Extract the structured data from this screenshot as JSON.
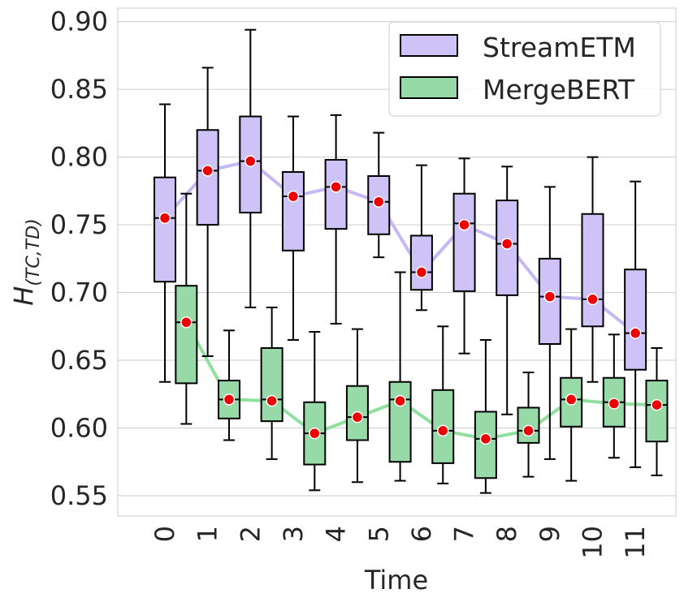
{
  "chart_data": {
    "type": "box",
    "title": "",
    "xlabel": "Time",
    "ylabel": "H",
    "ylabel_subscript": "(TC,TD)",
    "ylim": [
      0.535,
      0.91
    ],
    "yticks": [
      0.55,
      0.6,
      0.65,
      0.7,
      0.75,
      0.8,
      0.85,
      0.9
    ],
    "ytick_labels": [
      "0.55",
      "0.60",
      "0.65",
      "0.70",
      "0.75",
      "0.80",
      "0.85",
      "0.90"
    ],
    "categories": [
      "0",
      "1",
      "2",
      "3",
      "4",
      "5",
      "6",
      "7",
      "8",
      "9",
      "10",
      "11"
    ],
    "grid": true,
    "legend_position": "top-right",
    "series": [
      {
        "name": "StreamETM",
        "color": "#cfc2f7",
        "line_color": "#c6b8f5",
        "whisker_low": [
          0.634,
          0.653,
          0.689,
          0.665,
          0.677,
          0.726,
          0.687,
          0.655,
          0.61,
          0.577,
          0.634,
          0.571
        ],
        "q1": [
          0.708,
          0.75,
          0.759,
          0.731,
          0.747,
          0.743,
          0.702,
          0.701,
          0.698,
          0.662,
          0.675,
          0.643
        ],
        "median": [
          0.755,
          0.79,
          0.797,
          0.771,
          0.778,
          0.767,
          0.715,
          0.751,
          0.736,
          0.697,
          0.695,
          0.67
        ],
        "q3": [
          0.785,
          0.82,
          0.83,
          0.789,
          0.798,
          0.786,
          0.742,
          0.773,
          0.768,
          0.725,
          0.758,
          0.717
        ],
        "whisker_high": [
          0.839,
          0.866,
          0.894,
          0.83,
          0.831,
          0.818,
          0.794,
          0.799,
          0.793,
          0.778,
          0.8,
          0.782
        ],
        "mean": [
          0.755,
          0.79,
          0.797,
          0.771,
          0.778,
          0.767,
          0.715,
          0.75,
          0.736,
          0.697,
          0.695,
          0.67
        ]
      },
      {
        "name": "MergeBERT",
        "color": "#97d9a7",
        "line_color": "#8fe09c",
        "whisker_low": [
          0.603,
          0.591,
          0.577,
          0.554,
          0.56,
          0.561,
          0.559,
          0.552,
          0.564,
          0.561,
          0.578,
          0.565
        ],
        "q1": [
          0.633,
          0.607,
          0.605,
          0.573,
          0.591,
          0.575,
          0.574,
          0.563,
          0.589,
          0.601,
          0.601,
          0.59
        ],
        "median": [
          0.678,
          0.621,
          0.621,
          0.596,
          0.608,
          0.621,
          0.598,
          0.592,
          0.598,
          0.621,
          0.619,
          0.617
        ],
        "q3": [
          0.705,
          0.635,
          0.659,
          0.619,
          0.631,
          0.634,
          0.628,
          0.612,
          0.615,
          0.637,
          0.637,
          0.635
        ],
        "whisker_high": [
          0.773,
          0.672,
          0.689,
          0.671,
          0.673,
          0.715,
          0.675,
          0.665,
          0.641,
          0.673,
          0.669,
          0.659
        ],
        "mean": [
          0.678,
          0.621,
          0.62,
          0.596,
          0.608,
          0.62,
          0.598,
          0.592,
          0.598,
          0.621,
          0.618,
          0.617
        ]
      }
    ]
  }
}
